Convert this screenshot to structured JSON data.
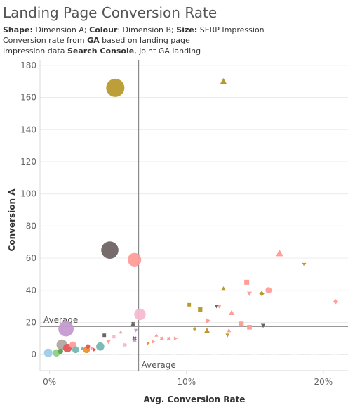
{
  "header": {
    "title": "Landing Page Conversion Rate",
    "line1": {
      "shape_key": "Shape:",
      "shape_val": " Dimension A; ",
      "colour_key": "Colour",
      "colour_val": ": Dimension B; ",
      "size_key": "Size:",
      "size_val": " SERP Impression"
    },
    "line2": {
      "pre": "Conversion rate from ",
      "bold": "GA",
      "post": " based on landing page"
    },
    "line3": {
      "pre": "Impression data ",
      "bold": "Search Console",
      "post": ", joint GA landing"
    }
  },
  "chart_data": {
    "type": "scatter",
    "title": "Landing Page Conversion Rate",
    "xlabel": "Avg. Conversion Rate",
    "ylabel": "Conversion A",
    "xlim": [
      -0.007,
      0.218
    ],
    "ylim": [
      -10,
      183
    ],
    "x_ticks": [
      0,
      0.1,
      0.2
    ],
    "x_tick_labels": [
      "0%",
      "10%",
      "20%"
    ],
    "y_ticks": [
      0,
      20,
      40,
      60,
      80,
      100,
      120,
      140,
      160,
      180
    ],
    "grid": "horizontal",
    "reference_lines": [
      {
        "axis": "y",
        "value": 17.5,
        "label": "Average"
      },
      {
        "axis": "x",
        "value": 0.065,
        "label": "Average"
      }
    ],
    "points": [
      {
        "x": 0.048,
        "y": 166,
        "size": 100,
        "shape": "circle",
        "color": "#b99a2e"
      },
      {
        "x": 0.127,
        "y": 170,
        "size": 14,
        "shape": "triangle",
        "color": "#b99a2e"
      },
      {
        "x": 0.044,
        "y": 65,
        "size": 90,
        "shape": "circle",
        "color": "#6f6463"
      },
      {
        "x": 0.062,
        "y": 59,
        "size": 55,
        "shape": "circle",
        "color": "#ff9d9a"
      },
      {
        "x": 0.066,
        "y": 25,
        "size": 40,
        "shape": "circle",
        "color": "#f7b9d0"
      },
      {
        "x": 0.012,
        "y": 16,
        "size": 70,
        "shape": "circle",
        "color": "#c49bcf"
      },
      {
        "x": 0.168,
        "y": 63,
        "size": 16,
        "shape": "triangle",
        "color": "#ff9d9a"
      },
      {
        "x": 0.186,
        "y": 56,
        "size": 5,
        "shape": "triangle-down",
        "color": "#b99a2e"
      },
      {
        "x": 0.144,
        "y": 45,
        "size": 10,
        "shape": "square",
        "color": "#ff9d9a"
      },
      {
        "x": 0.127,
        "y": 41,
        "size": 7,
        "shape": "triangle",
        "color": "#b99a2e"
      },
      {
        "x": 0.16,
        "y": 40,
        "size": 12,
        "shape": "circle",
        "color": "#ff9d9a"
      },
      {
        "x": 0.155,
        "y": 38,
        "size": 8,
        "shape": "diamond",
        "color": "#b99a2e"
      },
      {
        "x": 0.146,
        "y": 38,
        "size": 7,
        "shape": "triangle-down",
        "color": "#ff9d9a"
      },
      {
        "x": 0.209,
        "y": 33,
        "size": 8,
        "shape": "diamond",
        "color": "#ff9d9a"
      },
      {
        "x": 0.102,
        "y": 31,
        "size": 5,
        "shape": "square",
        "color": "#b99a2e"
      },
      {
        "x": 0.11,
        "y": 28,
        "size": 8,
        "shape": "square",
        "color": "#b99a2e"
      },
      {
        "x": 0.122,
        "y": 30,
        "size": 5,
        "shape": "triangle-down",
        "color": "#6f6463"
      },
      {
        "x": 0.124,
        "y": 30,
        "size": 6,
        "shape": "triangle-down",
        "color": "#ff9d9a"
      },
      {
        "x": 0.133,
        "y": 26,
        "size": 10,
        "shape": "triangle",
        "color": "#ff9d9a"
      },
      {
        "x": 0.116,
        "y": 21,
        "size": 8,
        "shape": "triangle-right",
        "color": "#ff9d9a"
      },
      {
        "x": 0.14,
        "y": 19,
        "size": 10,
        "shape": "square",
        "color": "#ff9d9a"
      },
      {
        "x": 0.146,
        "y": 17,
        "size": 9,
        "shape": "square",
        "color": "#ff9d9a"
      },
      {
        "x": 0.156,
        "y": 18,
        "size": 6,
        "shape": "triangle-down",
        "color": "#6f6463"
      },
      {
        "x": 0.106,
        "y": 16,
        "size": 3,
        "shape": "circle",
        "color": "#b99a2e"
      },
      {
        "x": 0.115,
        "y": 15,
        "size": 9,
        "shape": "triangle",
        "color": "#b99a2e"
      },
      {
        "x": 0.131,
        "y": 15,
        "size": 6,
        "shape": "triangle",
        "color": "#ff9d9a"
      },
      {
        "x": 0.13,
        "y": 12,
        "size": 5,
        "shape": "triangle-down",
        "color": "#b99a2e"
      },
      {
        "x": 0.061,
        "y": 19,
        "size": 6,
        "shape": "cross",
        "color": "#6f6463"
      },
      {
        "x": 0.063,
        "y": 15,
        "size": 4,
        "shape": "triangle-down",
        "color": "#c49bcf"
      },
      {
        "x": 0.052,
        "y": 14,
        "size": 4,
        "shape": "triangle",
        "color": "#ff9d9a"
      },
      {
        "x": 0.04,
        "y": 12,
        "size": 5,
        "shape": "square",
        "color": "#6f6463"
      },
      {
        "x": 0.047,
        "y": 11,
        "size": 4,
        "shape": "square",
        "color": "#f7b9d0"
      },
      {
        "x": 0.062,
        "y": 10,
        "size": 6,
        "shape": "cross",
        "color": "#6f6463"
      },
      {
        "x": 0.062,
        "y": 9,
        "size": 5,
        "shape": "triangle",
        "color": "#c49bcf"
      },
      {
        "x": 0.078,
        "y": 12,
        "size": 4,
        "shape": "triangle",
        "color": "#ff9d9a"
      },
      {
        "x": 0.082,
        "y": 10,
        "size": 5,
        "shape": "cross",
        "color": "#ff9d9a"
      },
      {
        "x": 0.087,
        "y": 10,
        "size": 4,
        "shape": "cross",
        "color": "#ff9d9a"
      },
      {
        "x": 0.092,
        "y": 10,
        "size": 5,
        "shape": "triangle-right",
        "color": "#ff9d9a"
      },
      {
        "x": 0.076,
        "y": 8,
        "size": 4,
        "shape": "triangle-right",
        "color": "#ff9d9a"
      },
      {
        "x": 0.072,
        "y": 7,
        "size": 4,
        "shape": "triangle-right",
        "color": "#f28e2b"
      },
      {
        "x": 0.043,
        "y": 8,
        "size": 7,
        "shape": "triangle-down",
        "color": "#ff9d9a"
      },
      {
        "x": 0.055,
        "y": 6,
        "size": 5,
        "shape": "cross",
        "color": "#f7b9d0"
      },
      {
        "x": 0.037,
        "y": 5,
        "size": 20,
        "shape": "circle",
        "color": "#76b7b2"
      },
      {
        "x": 0.031,
        "y": 4,
        "size": 5,
        "shape": "triangle-right",
        "color": "#ff9d9a"
      },
      {
        "x": 0.009,
        "y": 6,
        "size": 35,
        "shape": "circle",
        "color": "#b3a7a3"
      },
      {
        "x": 0.017,
        "y": 6,
        "size": 14,
        "shape": "circle",
        "color": "#ff9d9a"
      },
      {
        "x": 0.013,
        "y": 4,
        "size": 22,
        "shape": "circle",
        "color": "#e15759"
      },
      {
        "x": 0.019,
        "y": 3,
        "size": 14,
        "shape": "circle",
        "color": "#76b7b2"
      },
      {
        "x": 0.027,
        "y": 3,
        "size": 14,
        "shape": "circle",
        "color": "#f28e2b"
      },
      {
        "x": 0.028,
        "y": 5,
        "size": 6,
        "shape": "circle",
        "color": "#e15759"
      },
      {
        "x": 0.024,
        "y": 4,
        "size": 4,
        "shape": "triangle",
        "color": "#76b7b2"
      },
      {
        "x": 0.008,
        "y": 2,
        "size": 8,
        "shape": "circle",
        "color": "#59a14f"
      },
      {
        "x": 0.005,
        "y": 1,
        "size": 16,
        "shape": "circle",
        "color": "#8cd17d"
      },
      {
        "x": -0.001,
        "y": 1,
        "size": 22,
        "shape": "circle",
        "color": "#a0cbe8"
      },
      {
        "x": 0.033,
        "y": 3,
        "size": 4,
        "shape": "triangle-right",
        "color": "#e15759"
      }
    ]
  }
}
